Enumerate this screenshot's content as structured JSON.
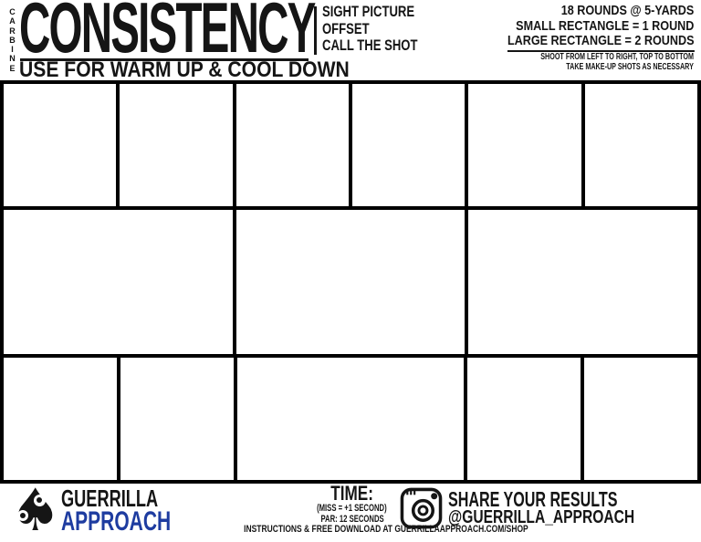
{
  "colors": {
    "ink": "#151515",
    "brand_blue": "#1e3ca0",
    "paper": "#ffffff"
  },
  "header": {
    "weapon_label_vertical": "CARBINE",
    "title": "CONSISTENCY",
    "subtitle": "USE FOR WARM UP & COOL DOWN",
    "focus_points": [
      "SIGHT PICTURE",
      "OFFSET",
      "CALL THE SHOT"
    ],
    "course_of_fire": [
      "18 ROUNDS @ 5-YARDS",
      "SMALL RECTANGLE = 1 ROUND",
      "LARGE RECTANGLE = 2 ROUNDS"
    ],
    "notes": [
      "SHOOT FROM LEFT TO RIGHT, TOP TO BOTTOM",
      "TAKE MAKE-UP SHOTS AS NECESSARY"
    ]
  },
  "grid": {
    "rows": [
      {
        "cells": [
          "small",
          "small",
          "small",
          "small",
          "small",
          "small"
        ]
      },
      {
        "cells": [
          "large",
          "large",
          "large"
        ]
      },
      {
        "cells": [
          "small",
          "small",
          "large",
          "small",
          "small"
        ]
      }
    ]
  },
  "footer": {
    "brand": {
      "logo": "spade-with-bullet-holes-icon",
      "name_top": "GUERRILLA",
      "name_bottom": "APPROACH"
    },
    "time": {
      "label": "TIME:",
      "miss_rule": "(MISS = +1 SECOND)",
      "par": "PAR: 12 SECONDS",
      "download_note": "INSTRUCTIONS & FREE DOWNLOAD AT GUERRILLAAPPROACH.COM/SHOP"
    },
    "share": {
      "icon": "instagram-icon",
      "line1": "SHARE YOUR RESULTS",
      "line2": "@GUERRILLA_APPROACH"
    }
  }
}
